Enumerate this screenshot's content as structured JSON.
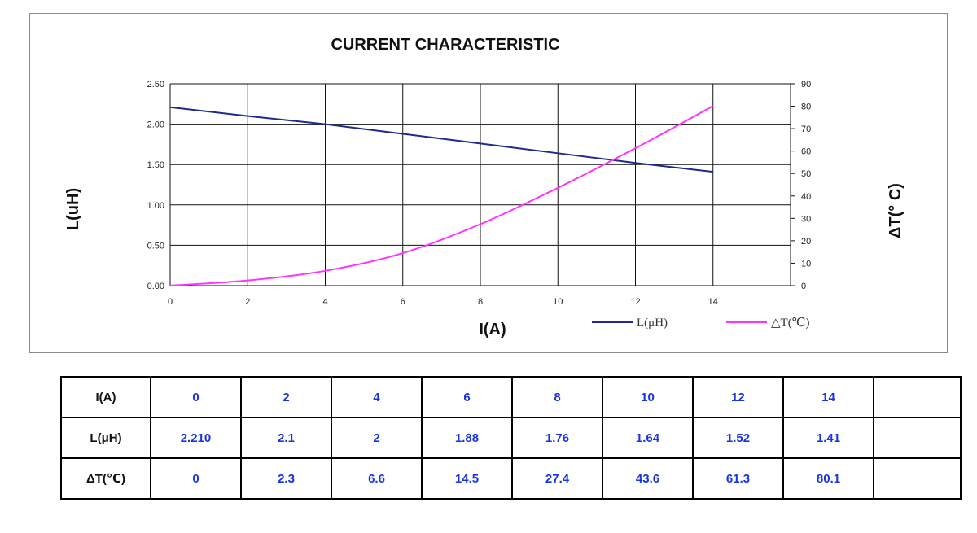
{
  "chart_data": {
    "type": "line",
    "title": "CURRENT CHARACTERISTIC",
    "xlabel": "I(A)",
    "ylabel_left": "L(uH)",
    "ylabel_right": "ΔT(° C)",
    "x": [
      0,
      2,
      4,
      6,
      8,
      10,
      12,
      14
    ],
    "xlim": [
      0,
      16
    ],
    "x_ticks": [
      "0",
      "2",
      "4",
      "6",
      "8",
      "10",
      "12",
      "14"
    ],
    "ylim_left": [
      0,
      2.5
    ],
    "y_ticks_left": [
      "0.00",
      "0.50",
      "1.00",
      "1.50",
      "2.00",
      "2.50"
    ],
    "ylim_right": [
      0,
      90
    ],
    "y_ticks_right": [
      "0",
      "10",
      "20",
      "30",
      "40",
      "50",
      "60",
      "70",
      "80",
      "90"
    ],
    "grid": true,
    "legend_position": "bottom-right",
    "series": [
      {
        "name": "L(μH)",
        "axis": "left",
        "color": "#1f2b8c",
        "values": [
          2.21,
          2.1,
          2.0,
          1.88,
          1.76,
          1.64,
          1.52,
          1.41
        ]
      },
      {
        "name": "△T(℃)",
        "axis": "right",
        "color": "#ff33ff",
        "values": [
          0,
          2.3,
          6.6,
          14.5,
          27.4,
          43.6,
          61.3,
          80.1
        ]
      }
    ]
  },
  "table": {
    "rows": [
      {
        "header": "I(A)",
        "cells": [
          "0",
          "2",
          "4",
          "6",
          "8",
          "10",
          "12",
          "14",
          ""
        ]
      },
      {
        "header": "L(μH)",
        "cells": [
          "2.210",
          "2.1",
          "2",
          "1.88",
          "1.76",
          "1.64",
          "1.52",
          "1.41",
          ""
        ]
      },
      {
        "header": "ΔT(℃)",
        "cells": [
          "0",
          "2.3",
          "6.6",
          "14.5",
          "27.4",
          "43.6",
          "61.3",
          "80.1",
          ""
        ]
      }
    ]
  }
}
